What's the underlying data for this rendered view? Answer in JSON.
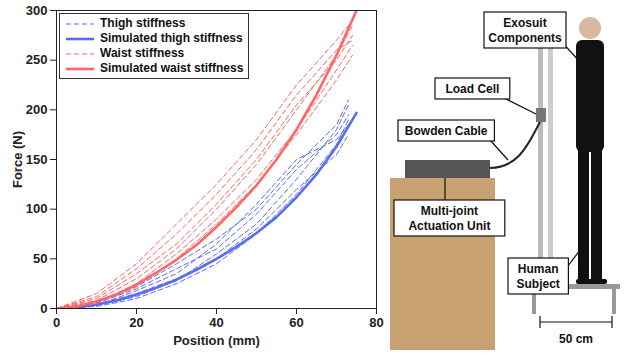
{
  "chart_data": {
    "type": "line",
    "x_label": "Position (mm)",
    "y_label": "Force (N)",
    "xlim": [
      0,
      80
    ],
    "ylim": [
      0,
      300
    ],
    "xticks": [
      0,
      20,
      40,
      60,
      80
    ],
    "yticks": [
      0,
      50,
      100,
      150,
      200,
      250,
      300
    ],
    "grid": false,
    "legend": "top-left",
    "series": [
      {
        "name": "Thigh stiffness",
        "color": "#5a6cf0",
        "line_style": "dashed",
        "x": [
          0,
          10,
          20,
          30,
          40,
          50,
          60,
          70,
          73
        ],
        "values": [
          0,
          3,
          12,
          28,
          55,
          85,
          130,
          180,
          205
        ]
      },
      {
        "name": "Thigh stiffness",
        "color": "#5a6cf0",
        "line_style": "dashed",
        "x": [
          0,
          10,
          20,
          30,
          40,
          50,
          60,
          70,
          73
        ],
        "values": [
          0,
          5,
          20,
          40,
          60,
          95,
          140,
          175,
          195
        ]
      },
      {
        "name": "Thigh stiffness",
        "color": "#5a6cf0",
        "line_style": "dashed",
        "x": [
          0,
          10,
          20,
          30,
          40,
          50,
          60,
          70,
          73
        ],
        "values": [
          0,
          2,
          10,
          25,
          45,
          75,
          115,
          165,
          190
        ]
      },
      {
        "name": "Thigh stiffness",
        "color": "#5a6cf0",
        "line_style": "dashed",
        "x": [
          0,
          10,
          20,
          30,
          40,
          50,
          60,
          70,
          73
        ],
        "values": [
          0,
          6,
          22,
          45,
          70,
          100,
          145,
          185,
          210
        ]
      },
      {
        "name": "Thigh stiffness",
        "color": "#5a6cf0",
        "line_style": "dashed",
        "x": [
          0,
          10,
          20,
          30,
          40,
          50,
          60,
          70,
          73
        ],
        "values": [
          0,
          4,
          15,
          30,
          50,
          80,
          120,
          155,
          175
        ]
      },
      {
        "name": "Thigh stiffness",
        "color": "#5a6cf0",
        "line_style": "dashed",
        "x": [
          0,
          10,
          20,
          30,
          40,
          50,
          60,
          70,
          73
        ],
        "values": [
          0,
          3,
          18,
          35,
          65,
          105,
          150,
          170,
          185
        ]
      },
      {
        "name": "Simulated thigh stiffness",
        "color": "#5a6cf0",
        "line_style": "solid",
        "x": [
          0,
          5,
          10,
          15,
          20,
          25,
          30,
          35,
          40,
          45,
          50,
          55,
          60,
          65,
          70,
          75
        ],
        "values": [
          0,
          1,
          4,
          8,
          14,
          21,
          29,
          39,
          50,
          62,
          76,
          92,
          112,
          135,
          163,
          197
        ]
      },
      {
        "name": "Waist stiffness",
        "color": "#ff6666",
        "line_style": "dashed",
        "x": [
          0,
          10,
          20,
          30,
          40,
          50,
          60,
          70,
          74
        ],
        "values": [
          0,
          8,
          30,
          60,
          100,
          145,
          200,
          255,
          285
        ]
      },
      {
        "name": "Waist stiffness",
        "color": "#ff6666",
        "line_style": "dashed",
        "x": [
          0,
          10,
          20,
          30,
          40,
          50,
          60,
          70,
          74
        ],
        "values": [
          0,
          12,
          40,
          75,
          115,
          160,
          215,
          260,
          270
        ]
      },
      {
        "name": "Waist stiffness",
        "color": "#ff6666",
        "line_style": "dashed",
        "x": [
          0,
          10,
          20,
          30,
          40,
          50,
          60,
          70,
          74
        ],
        "values": [
          0,
          6,
          25,
          55,
          90,
          130,
          180,
          240,
          265
        ]
      },
      {
        "name": "Waist stiffness",
        "color": "#ff6666",
        "line_style": "dashed",
        "x": [
          0,
          10,
          20,
          30,
          40,
          50,
          60,
          70,
          74
        ],
        "values": [
          0,
          15,
          45,
          85,
          125,
          170,
          225,
          270,
          290
        ]
      },
      {
        "name": "Waist stiffness",
        "color": "#ff6666",
        "line_style": "dashed",
        "x": [
          0,
          10,
          20,
          30,
          40,
          50,
          60,
          70,
          74
        ],
        "values": [
          0,
          10,
          35,
          65,
          105,
          150,
          205,
          250,
          275
        ]
      },
      {
        "name": "Waist stiffness",
        "color": "#ff6666",
        "line_style": "dashed",
        "x": [
          0,
          10,
          20,
          30,
          40,
          50,
          60,
          70,
          74
        ],
        "values": [
          0,
          5,
          22,
          50,
          85,
          125,
          175,
          230,
          255
        ]
      },
      {
        "name": "Simulated waist stiffness",
        "color": "#ff6666",
        "line_style": "solid",
        "x": [
          0,
          5,
          10,
          15,
          20,
          25,
          30,
          35,
          40,
          45,
          50,
          55,
          60,
          65,
          70,
          75
        ],
        "values": [
          0,
          2,
          7,
          14,
          24,
          36,
          49,
          64,
          82,
          102,
          124,
          150,
          180,
          215,
          255,
          300
        ]
      }
    ]
  },
  "setup_labels": {
    "exosuit": "Exosuit Components",
    "load_cell": "Load Cell",
    "bowden": "Bowden Cable",
    "actuation": "Multi-joint Actuation Unit",
    "subject": "Human Subject",
    "distance": "50 cm"
  }
}
